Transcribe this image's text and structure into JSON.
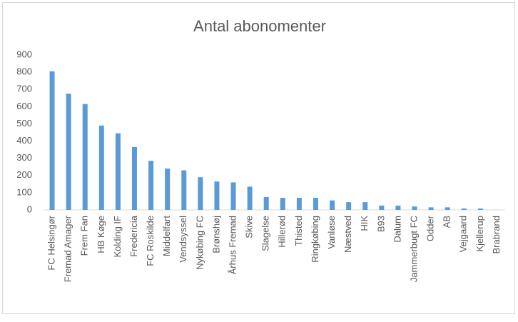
{
  "chart_data": {
    "type": "bar",
    "title": "Antal abonomenter",
    "categories": [
      "FC Helsingør",
      "Fremad Amager",
      "Frem Fan",
      "HB Køge",
      "Kolding IF",
      "Fredericia",
      "FC Roskilde",
      "Middelfart",
      "Vendsyssel",
      "Nykøbing FC",
      "Brønshøj",
      "Århus Fremad",
      "Skive",
      "Slagelse",
      "Hillerød",
      "Thisted",
      "Ringkøbing",
      "Vanløse",
      "Næstved",
      "HIK",
      "B93",
      "Dalum",
      "Jammerbugt FC",
      "Odder",
      "AB",
      "Vejgaard",
      "Kjellerup",
      "Brabrand"
    ],
    "values": [
      805,
      675,
      615,
      490,
      445,
      365,
      285,
      240,
      230,
      190,
      165,
      160,
      135,
      75,
      70,
      70,
      70,
      55,
      45,
      45,
      25,
      25,
      20,
      15,
      15,
      8,
      8,
      0
    ],
    "color": "#5b9bd5",
    "ylim": [
      0,
      900
    ],
    "yticks": [
      0,
      100,
      200,
      300,
      400,
      500,
      600,
      700,
      800,
      900
    ],
    "grid": false
  }
}
